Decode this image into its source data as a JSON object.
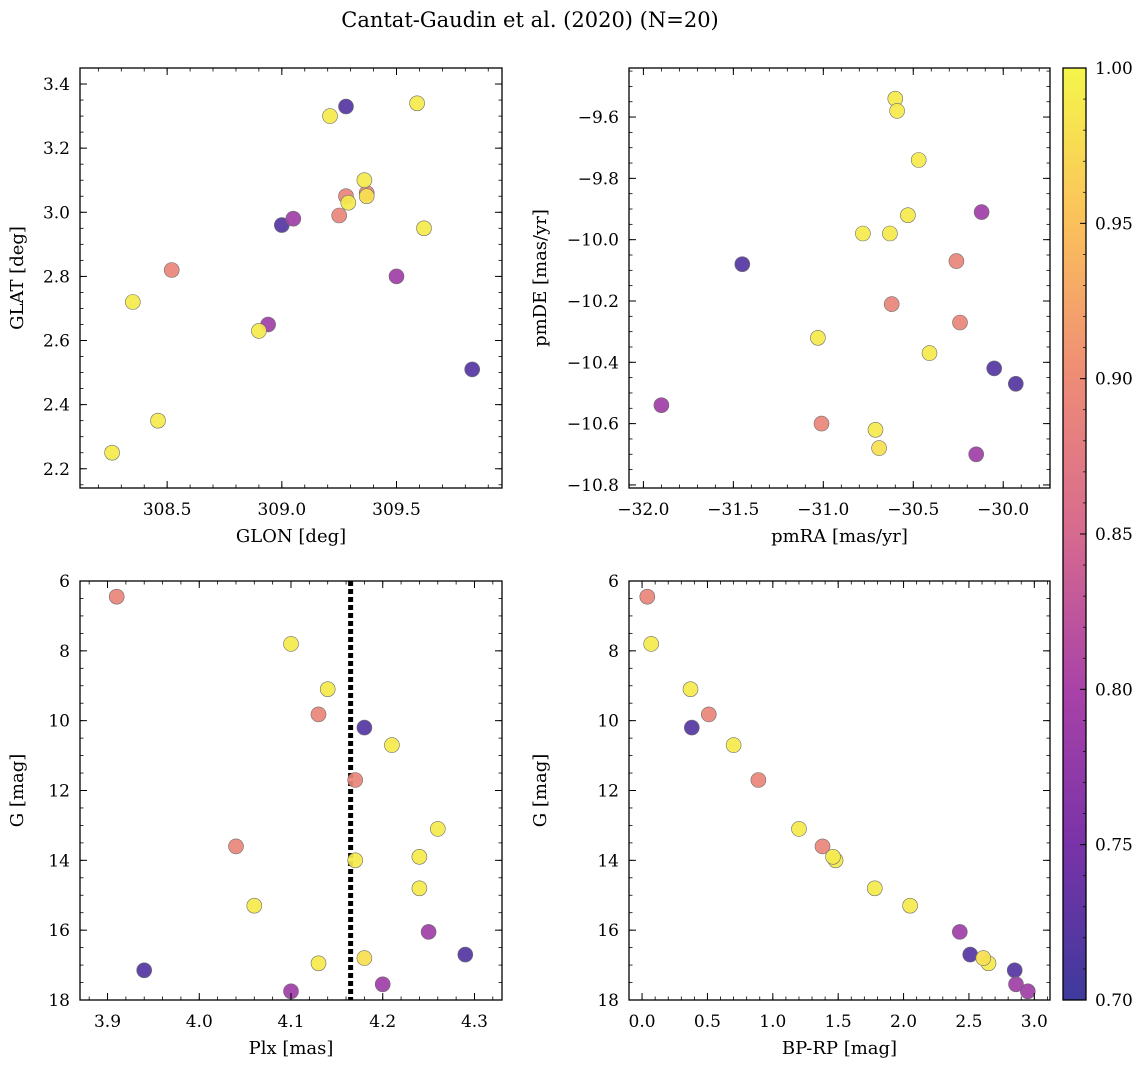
{
  "chart_data": {
    "title": "Cantat-Gaudin et al. (2020) (N=20)",
    "type": "scatter",
    "colorbar": {
      "range": [
        0.7,
        1.0
      ],
      "ticks": [
        "0.70",
        "0.75",
        "0.80",
        "0.85",
        "0.90",
        "0.95",
        "1.00"
      ],
      "colormap": "plasma"
    },
    "stars": [
      {
        "glon": 309.28,
        "glat": 3.33,
        "pmra": -31.45,
        "pmde": -10.08,
        "plx": 4.18,
        "g": 10.2,
        "bprp": 0.38,
        "prob": 0.72
      },
      {
        "glon": 309.0,
        "glat": 2.96,
        "pmra": -30.05,
        "pmde": -10.42,
        "plx": 3.94,
        "g": 17.15,
        "bprp": 2.85,
        "prob": 0.72
      },
      {
        "glon": 309.83,
        "glat": 2.51,
        "pmra": -29.93,
        "pmde": -10.47,
        "plx": 4.29,
        "g": 16.7,
        "bprp": 2.51,
        "prob": 0.72
      },
      {
        "glon": 309.05,
        "glat": 2.98,
        "pmra": -31.9,
        "pmde": -10.54,
        "plx": 4.25,
        "g": 16.05,
        "bprp": 2.43,
        "prob": 0.79
      },
      {
        "glon": 308.94,
        "glat": 2.65,
        "pmra": -30.15,
        "pmde": -10.7,
        "plx": 4.2,
        "g": 17.55,
        "bprp": 2.86,
        "prob": 0.79
      },
      {
        "glon": 309.5,
        "glat": 2.8,
        "pmra": -30.12,
        "pmde": -9.91,
        "plx": 4.1,
        "g": 17.75,
        "bprp": 2.95,
        "prob": 0.79
      },
      {
        "glon": 308.52,
        "glat": 2.82,
        "pmra": -31.01,
        "pmde": -10.6,
        "plx": 3.91,
        "g": 6.45,
        "bprp": 0.04,
        "prob": 0.89
      },
      {
        "glon": 309.28,
        "glat": 3.05,
        "pmra": -30.26,
        "pmde": -10.07,
        "plx": 4.13,
        "g": 9.82,
        "bprp": 0.51,
        "prob": 0.89
      },
      {
        "glon": 309.25,
        "glat": 2.99,
        "pmra": -30.24,
        "pmde": -10.27,
        "plx": 4.17,
        "g": 11.7,
        "bprp": 0.89,
        "prob": 0.89
      },
      {
        "glon": 309.37,
        "glat": 3.06,
        "pmra": -30.62,
        "pmde": -10.21,
        "plx": 4.04,
        "g": 13.6,
        "bprp": 1.38,
        "prob": 0.89
      },
      {
        "glon": 309.21,
        "glat": 3.3,
        "pmra": -30.6,
        "pmde": -9.54,
        "plx": 4.1,
        "g": 7.8,
        "bprp": 0.07,
        "prob": 0.99
      },
      {
        "glon": 309.59,
        "glat": 3.34,
        "pmra": -30.59,
        "pmde": -9.58,
        "plx": 4.14,
        "g": 9.1,
        "bprp": 0.37,
        "prob": 0.99
      },
      {
        "glon": 309.36,
        "glat": 3.1,
        "pmra": -30.47,
        "pmde": -9.74,
        "plx": 4.21,
        "g": 10.7,
        "bprp": 0.7,
        "prob": 0.99
      },
      {
        "glon": 309.29,
        "glat": 3.03,
        "pmra": -30.53,
        "pmde": -9.92,
        "plx": 4.26,
        "g": 13.1,
        "bprp": 1.2,
        "prob": 0.99
      },
      {
        "glon": 309.62,
        "glat": 2.95,
        "pmra": -30.78,
        "pmde": -9.98,
        "plx": 4.17,
        "g": 14.0,
        "bprp": 1.48,
        "prob": 0.99
      },
      {
        "glon": 308.35,
        "glat": 2.72,
        "pmra": -30.63,
        "pmde": -9.98,
        "plx": 4.24,
        "g": 13.9,
        "bprp": 1.46,
        "prob": 0.99
      },
      {
        "glon": 308.9,
        "glat": 2.63,
        "pmra": -31.03,
        "pmde": -10.32,
        "plx": 4.24,
        "g": 14.8,
        "bprp": 1.78,
        "prob": 0.99
      },
      {
        "glon": 308.46,
        "glat": 2.35,
        "pmra": -30.41,
        "pmde": -10.37,
        "plx": 4.06,
        "g": 15.3,
        "bprp": 2.05,
        "prob": 0.99
      },
      {
        "glon": 308.26,
        "glat": 2.25,
        "pmra": -30.71,
        "pmde": -10.62,
        "plx": 4.13,
        "g": 16.95,
        "bprp": 2.65,
        "prob": 0.99
      },
      {
        "glon": 309.37,
        "glat": 3.05,
        "pmra": -30.69,
        "pmde": -10.68,
        "plx": 4.18,
        "g": 16.8,
        "bprp": 2.61,
        "prob": 0.98
      }
    ],
    "panels": [
      {
        "id": "glon-glat",
        "x": "glon",
        "y": "glat",
        "xlabel": "GLON [deg]",
        "ylabel": "GLAT [deg]",
        "xlim": [
          308.12,
          309.96
        ],
        "ylim": [
          2.14,
          3.45
        ],
        "xticks": [
          308.5,
          309.0,
          309.5
        ],
        "xticklabels": [
          "308.5",
          "309.0",
          "309.5"
        ],
        "yticks": [
          2.2,
          2.4,
          2.6,
          2.8,
          3.0,
          3.2,
          3.4
        ],
        "yticklabels": [
          "2.2",
          "2.4",
          "2.6",
          "2.8",
          "3.0",
          "3.2",
          "3.4"
        ],
        "yinvert": false
      },
      {
        "id": "pmra-pmde",
        "x": "pmra",
        "y": "pmde",
        "xlabel": "pmRA [mas/yr]",
        "ylabel": "pmDE [mas/yr]",
        "xlim": [
          -32.08,
          -29.74
        ],
        "ylim": [
          -10.81,
          -9.44
        ],
        "xticks": [
          -32.0,
          -31.5,
          -31.0,
          -30.5,
          -30.0
        ],
        "xticklabels": [
          "−32.0",
          "−31.5",
          "−31.0",
          "−30.5",
          "−30.0"
        ],
        "yticks": [
          -10.8,
          -10.6,
          -10.4,
          -10.2,
          -10.0,
          -9.8,
          -9.6
        ],
        "yticklabels": [
          "−10.8",
          "−10.6",
          "−10.4",
          "−10.2",
          "−10.0",
          "−9.8",
          "−9.6"
        ],
        "yinvert": false
      },
      {
        "id": "plx-g",
        "x": "plx",
        "y": "g",
        "xlabel": "Plx [mas]",
        "ylabel": "G [mag]",
        "xlim": [
          3.87,
          4.33
        ],
        "ylim": [
          6.0,
          18.0
        ],
        "xticks": [
          3.9,
          4.0,
          4.1,
          4.2,
          4.3
        ],
        "xticklabels": [
          "3.9",
          "4.0",
          "4.1",
          "4.2",
          "4.3"
        ],
        "yticks": [
          6,
          8,
          10,
          12,
          14,
          16,
          18
        ],
        "yticklabels": [
          "6",
          "8",
          "10",
          "12",
          "14",
          "16",
          "18"
        ],
        "yinvert": true,
        "vline": 4.165
      },
      {
        "id": "bprp-g",
        "x": "bprp",
        "y": "g",
        "xlabel": "BP-RP [mag]",
        "ylabel": "G [mag]",
        "xlim": [
          -0.1,
          3.12
        ],
        "ylim": [
          6.0,
          18.0
        ],
        "xticks": [
          0.0,
          0.5,
          1.0,
          1.5,
          2.0,
          2.5,
          3.0
        ],
        "xticklabels": [
          "0.0",
          "0.5",
          "1.0",
          "1.5",
          "2.0",
          "2.5",
          "3.0"
        ],
        "yticks": [
          6,
          8,
          10,
          12,
          14,
          16,
          18
        ],
        "yticklabels": [
          "6",
          "8",
          "10",
          "12",
          "14",
          "16",
          "18"
        ],
        "yinvert": true
      }
    ]
  }
}
